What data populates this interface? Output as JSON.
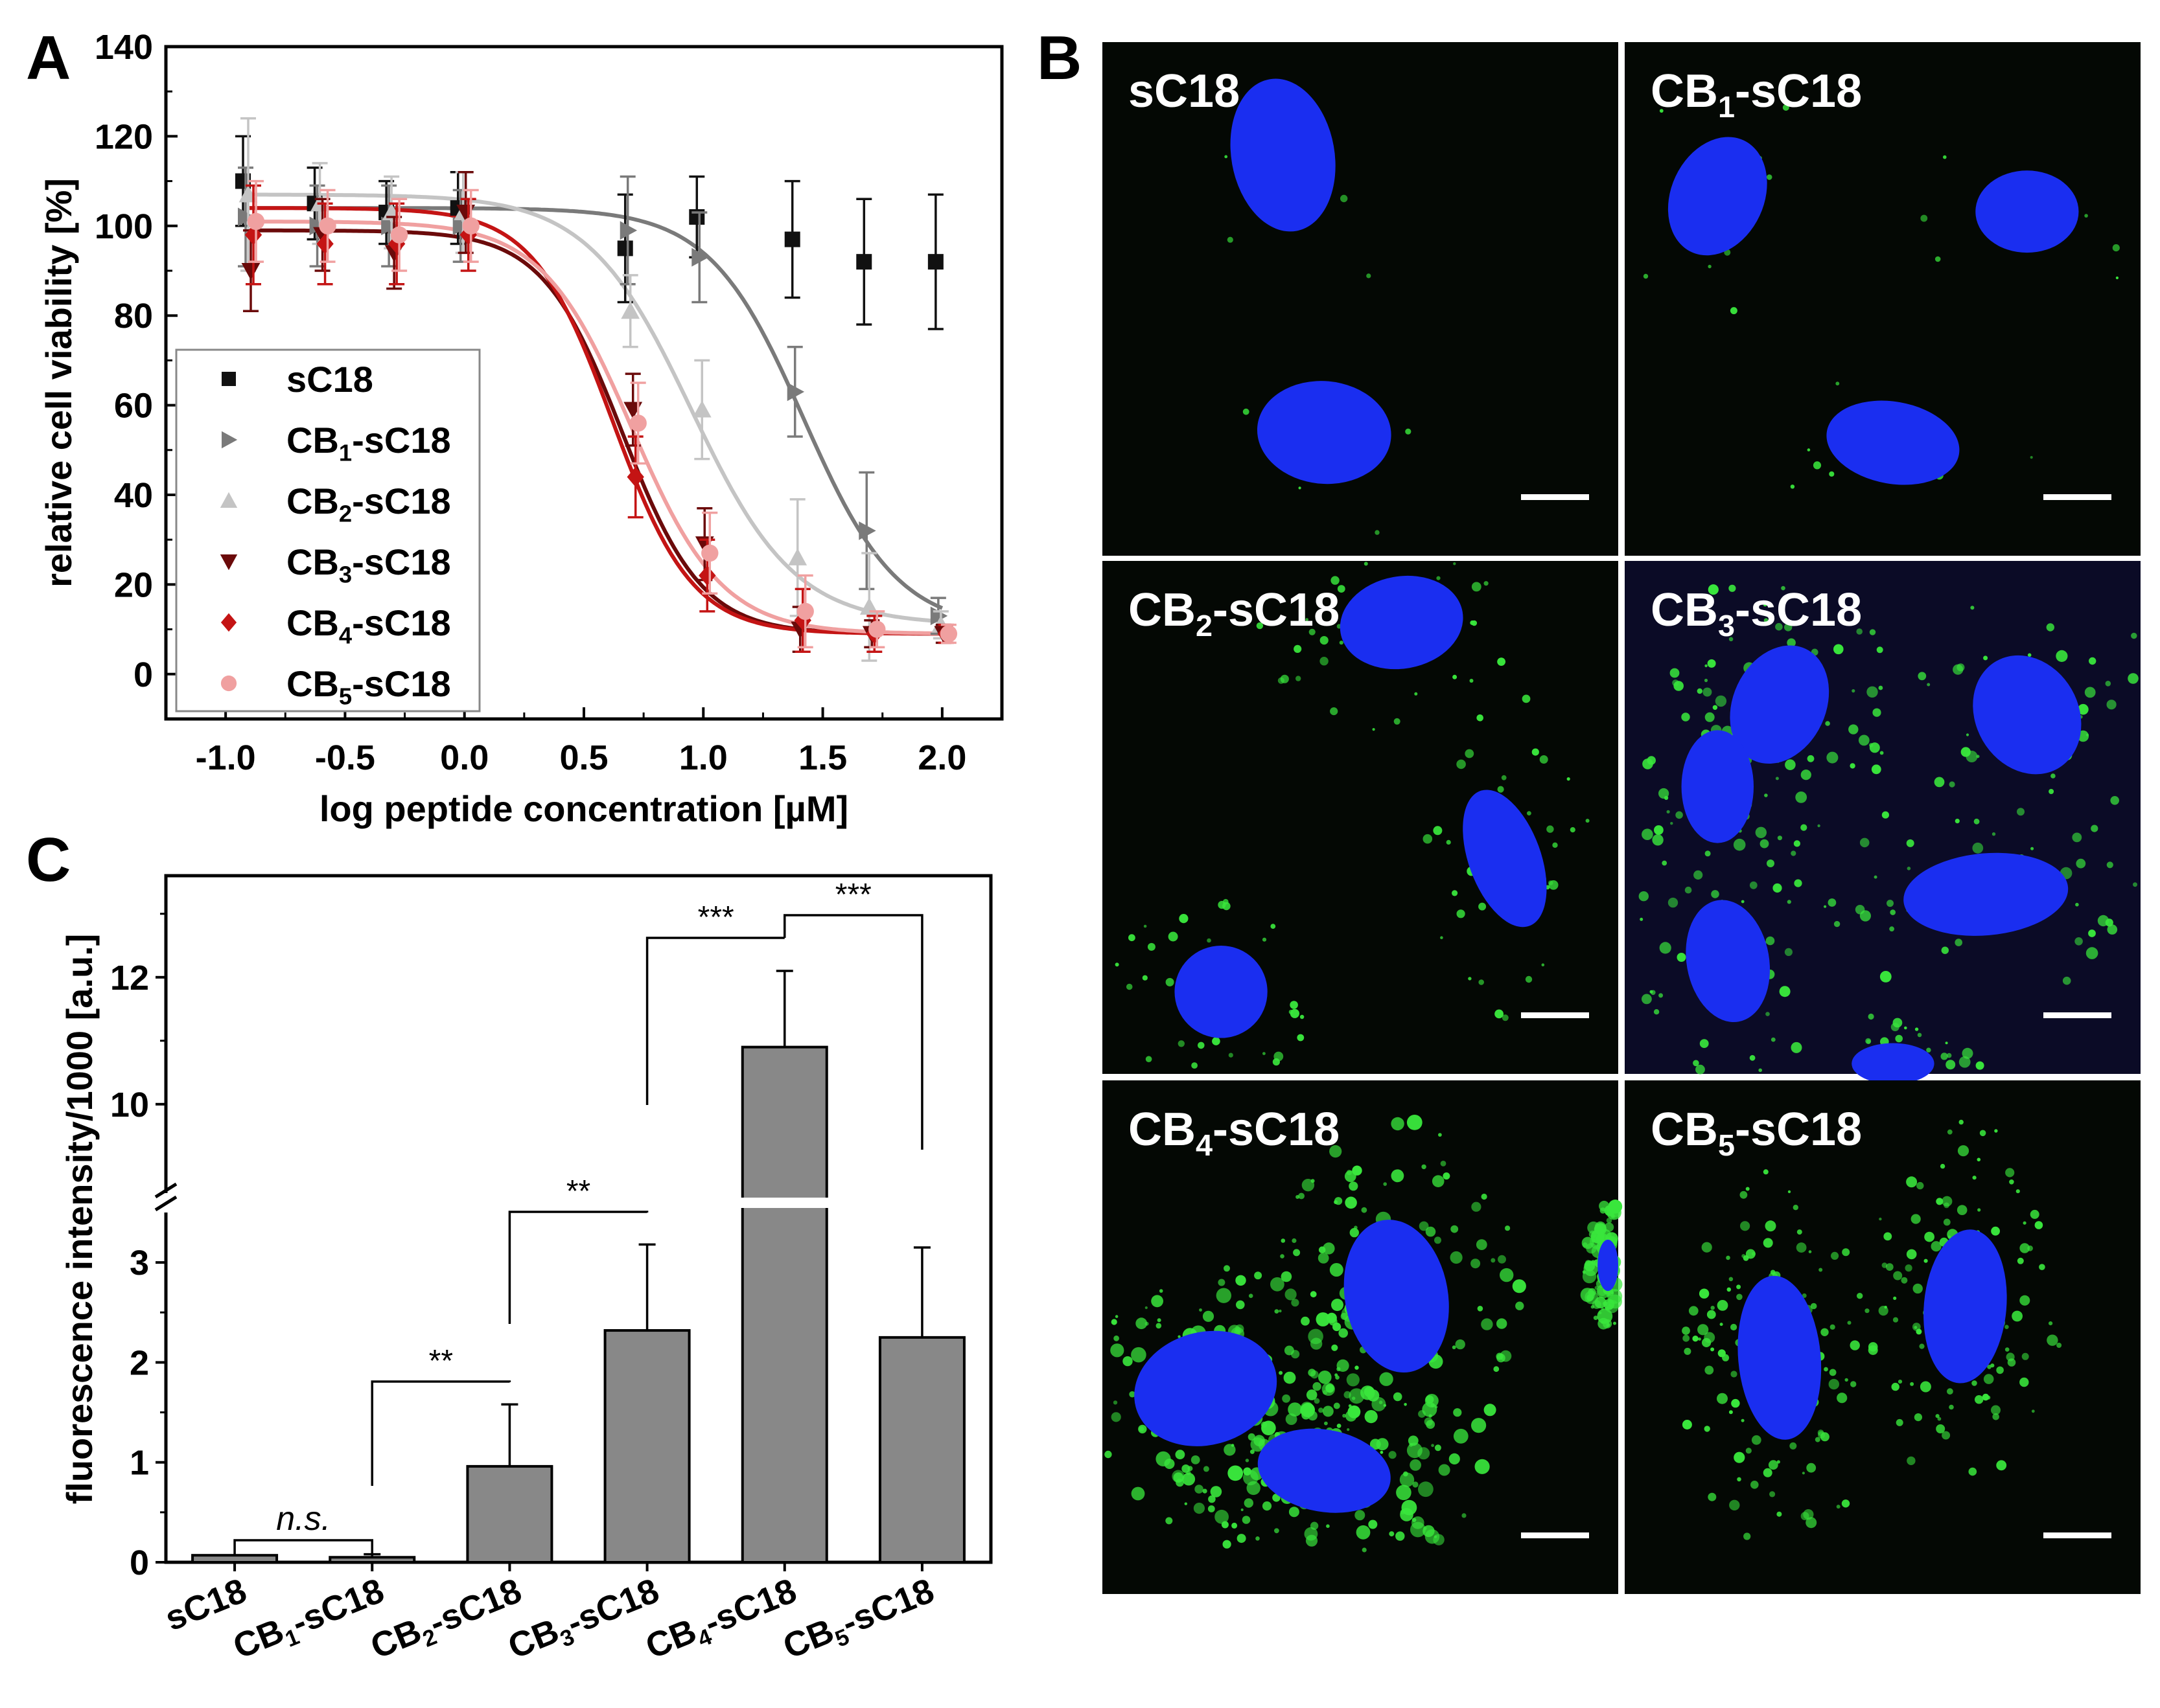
{
  "panels": {
    "A": "A",
    "B": "B",
    "C": "C"
  },
  "colors": {
    "sC18": "#111111",
    "CB1": "#7a7a7a",
    "CB2": "#c4c4c4",
    "CB3": "#6b0a0a",
    "CB4": "#c41414",
    "CB5": "#f0a0a0",
    "bar": "#888888",
    "nucleus": "#1a2ef0",
    "vesicle": "#39e63c"
  },
  "chart_data": [
    {
      "panel": "A",
      "type": "scatter",
      "xlabel": "log peptide concentration [µM]",
      "ylabel": "relative cell viability [%]",
      "xlim": [
        -1.25,
        2.25
      ],
      "ylim": [
        -10,
        140
      ],
      "xticks": [
        "-1.0",
        "-0.5",
        "0.0",
        "0.5",
        "1.0",
        "1.5",
        "2.0"
      ],
      "yticks": [
        "0",
        "20",
        "40",
        "60",
        "80",
        "100",
        "120",
        "140"
      ],
      "legend_position": "bottom-left",
      "x": [
        -0.9,
        -0.6,
        -0.3,
        0.0,
        0.7,
        1.0,
        1.4,
        1.7,
        2.0
      ],
      "series": [
        {
          "name": "sC18",
          "label_pre": "sC18",
          "sub": "",
          "label_post": "",
          "marker": "square",
          "color_key": "sC18",
          "values": [
            110,
            105,
            103,
            104,
            95,
            102,
            97,
            92,
            92
          ],
          "errors": [
            10,
            8,
            7,
            8,
            12,
            9,
            13,
            14,
            15
          ],
          "fit": null
        },
        {
          "name": "CB1-sC18",
          "label_pre": "CB",
          "sub": "1",
          "label_post": "-sC18",
          "marker": "triangle-right",
          "color_key": "CB1",
          "values": [
            102,
            100,
            100,
            100,
            99,
            93,
            63,
            32,
            13
          ],
          "errors": [
            11,
            9,
            9,
            8,
            12,
            10,
            10,
            13,
            4
          ],
          "fit": {
            "top": 104,
            "bottom": 10,
            "logec50": 1.42,
            "hill": 2.2
          }
        },
        {
          "name": "CB2-sC18",
          "label_pre": "CB",
          "sub": "2",
          "label_post": "-sC18",
          "marker": "triangle-up",
          "color_key": "CB2",
          "values": [
            107,
            105,
            103,
            103,
            81,
            59,
            26,
            15,
            11
          ],
          "errors": [
            17,
            9,
            8,
            9,
            8,
            11,
            13,
            12,
            3
          ],
          "fit": {
            "top": 107,
            "bottom": 11,
            "logec50": 0.95,
            "hill": 2.0
          }
        },
        {
          "name": "CB3-sC18",
          "label_pre": "CB",
          "sub": "3",
          "label_post": "-sC18",
          "marker": "triangle-down",
          "color_key": "CB3",
          "values": [
            90,
            98,
            94,
            103,
            59,
            29,
            10,
            9,
            9
          ],
          "errors": [
            9,
            8,
            8,
            9,
            8,
            8,
            5,
            3,
            2
          ],
          "fit": {
            "top": 99,
            "bottom": 9,
            "logec50": 0.66,
            "hill": 2.6
          }
        },
        {
          "name": "CB4-sC18",
          "label_pre": "CB",
          "sub": "4",
          "label_post": "-sC18",
          "marker": "diamond",
          "color_key": "CB4",
          "values": [
            98,
            96,
            96,
            98,
            44,
            22,
            12,
            9,
            9
          ],
          "errors": [
            11,
            9,
            9,
            8,
            9,
            8,
            7,
            4,
            2
          ],
          "fit": {
            "top": 104,
            "bottom": 9,
            "logec50": 0.62,
            "hill": 2.6
          }
        },
        {
          "name": "CB5-sC18",
          "label_pre": "CB",
          "sub": "5",
          "label_post": "-sC18",
          "marker": "circle",
          "color_key": "CB5",
          "values": [
            101,
            100,
            98,
            100,
            56,
            27,
            14,
            10,
            9
          ],
          "errors": [
            9,
            8,
            8,
            8,
            9,
            9,
            8,
            4,
            2
          ],
          "fit": {
            "top": 101,
            "bottom": 9,
            "logec50": 0.7,
            "hill": 2.3
          }
        }
      ]
    },
    {
      "panel": "C",
      "type": "bar",
      "ylabel": "fluorescence intensity/1000 [a.u.]",
      "axis_break": true,
      "yticks_lower": [
        "0",
        "1",
        "2",
        "3"
      ],
      "yticks_upper": [
        "10",
        "12"
      ],
      "categories": [
        {
          "pre": "sC18",
          "sub": "",
          "post": ""
        },
        {
          "pre": "CB",
          "sub": "1",
          "post": "-sC18"
        },
        {
          "pre": "CB",
          "sub": "2",
          "post": "-sC18"
        },
        {
          "pre": "CB",
          "sub": "3",
          "post": "-sC18"
        },
        {
          "pre": "CB",
          "sub": "4",
          "post": "-sC18"
        },
        {
          "pre": "CB",
          "sub": "5",
          "post": "-sC18"
        }
      ],
      "values": [
        0.07,
        0.05,
        0.96,
        2.32,
        10.9,
        2.25
      ],
      "errors": [
        0.0,
        0.03,
        0.62,
        0.86,
        1.2,
        0.9
      ],
      "significance": [
        {
          "from": 0,
          "to": 1,
          "label": "n.s.",
          "italic": true
        },
        {
          "from": 1,
          "to": 2,
          "label": "**",
          "italic": false
        },
        {
          "from": 2,
          "to": 3,
          "label": "**",
          "italic": false
        },
        {
          "from": 3,
          "to": 4,
          "label": "***",
          "italic": false
        },
        {
          "from": 4,
          "to": 5,
          "label": "***",
          "italic": false
        }
      ]
    }
  ],
  "microscopy": {
    "tiles": [
      {
        "label_pre": "sC18",
        "sub": "",
        "label_post": "",
        "vesicle_density": 0.02
      },
      {
        "label_pre": "CB",
        "sub": "1",
        "label_post": "-sC18",
        "vesicle_density": 0.05
      },
      {
        "label_pre": "CB",
        "sub": "2",
        "label_post": "-sC18",
        "vesicle_density": 0.25
      },
      {
        "label_pre": "CB",
        "sub": "3",
        "label_post": "-sC18",
        "vesicle_density": 0.55
      },
      {
        "label_pre": "CB",
        "sub": "4",
        "label_post": "-sC18",
        "vesicle_density": 1.0
      },
      {
        "label_pre": "CB",
        "sub": "5",
        "label_post": "-sC18",
        "vesicle_density": 0.45
      }
    ]
  }
}
